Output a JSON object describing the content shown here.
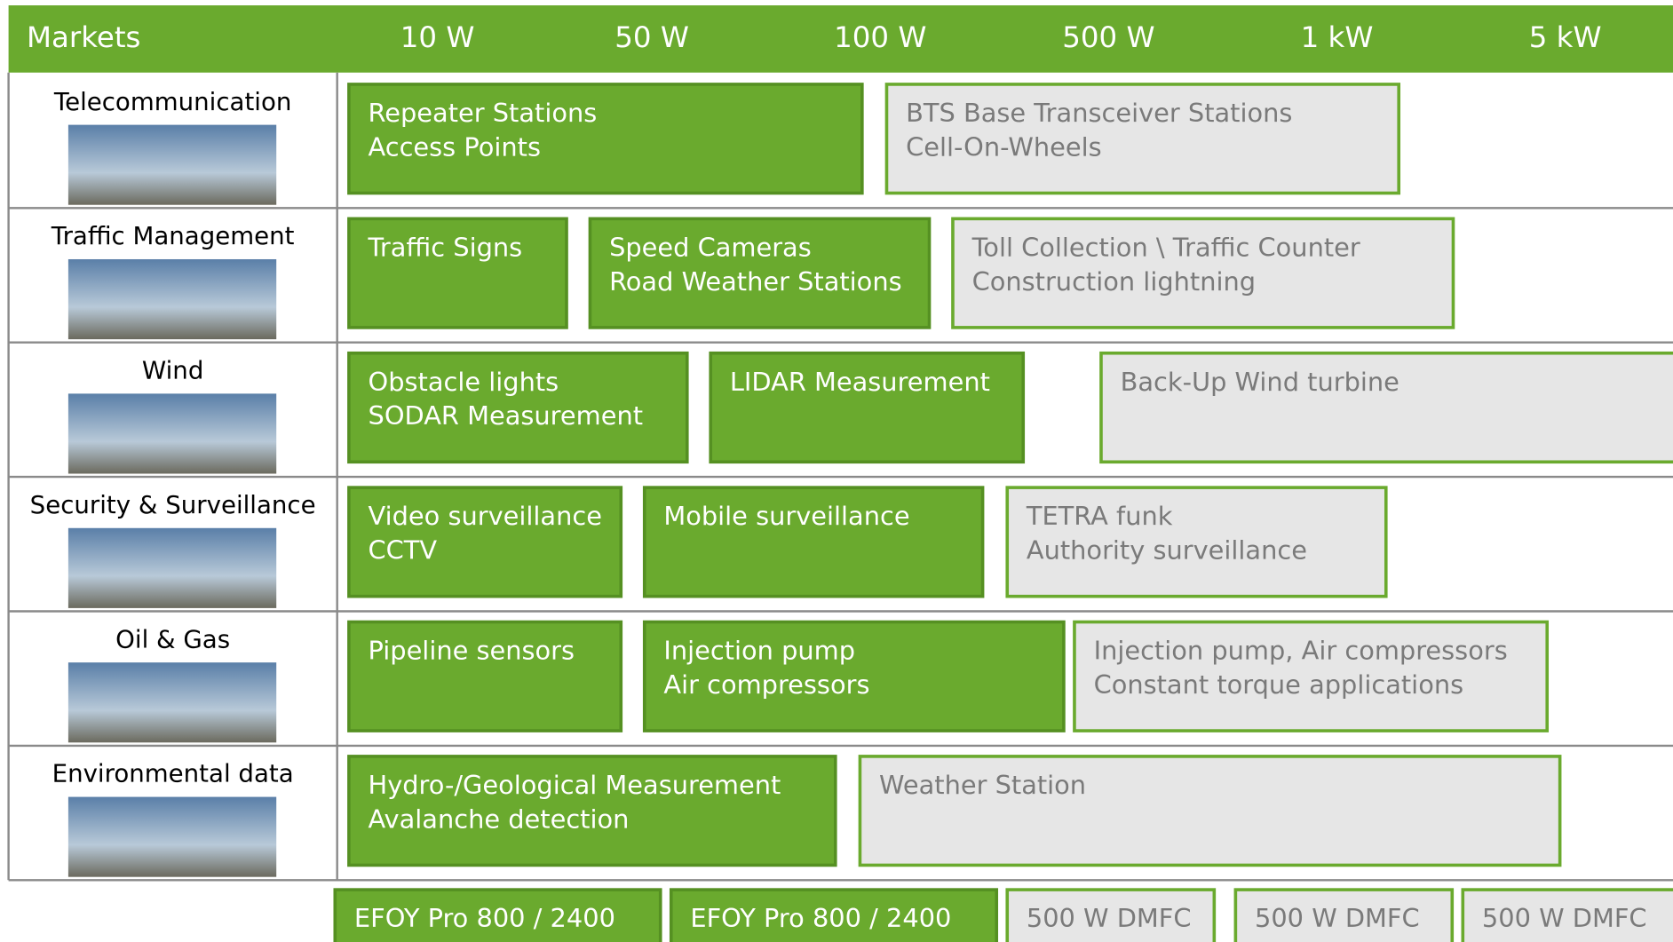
{
  "header": {
    "title": "Markets",
    "power_levels": [
      "10 W",
      "50 W",
      "100 W",
      "500 W",
      "1 kW",
      "5 kW"
    ]
  },
  "markets": [
    {
      "name": "Telecommunication",
      "applications": [
        {
          "lines": [
            "Repeater Stations",
            "Access Points"
          ],
          "style": "green"
        },
        {
          "lines": [
            "BTS Base Transceiver Stations",
            "Cell-On-Wheels"
          ],
          "style": "gray"
        }
      ]
    },
    {
      "name": "Traffic Management",
      "applications": [
        {
          "lines": [
            "Traffic Signs"
          ],
          "style": "green"
        },
        {
          "lines": [
            "Speed Cameras",
            "Road Weather Stations"
          ],
          "style": "green"
        },
        {
          "lines": [
            "Toll Collection \\ Traffic Counter",
            "Construction lightning"
          ],
          "style": "gray"
        }
      ]
    },
    {
      "name": "Wind",
      "applications": [
        {
          "lines": [
            "Obstacle lights",
            "SODAR Measurement"
          ],
          "style": "green"
        },
        {
          "lines": [
            "LIDAR Measurement"
          ],
          "style": "green"
        },
        {
          "lines": [
            "Back-Up Wind turbine"
          ],
          "style": "gray"
        }
      ]
    },
    {
      "name": "Security & Surveillance",
      "applications": [
        {
          "lines": [
            "Video surveillance",
            "CCTV"
          ],
          "style": "green"
        },
        {
          "lines": [
            "Mobile surveillance"
          ],
          "style": "green"
        },
        {
          "lines": [
            "TETRA funk",
            "Authority surveillance"
          ],
          "style": "gray"
        }
      ]
    },
    {
      "name": "Oil & Gas",
      "applications": [
        {
          "lines": [
            "Pipeline sensors"
          ],
          "style": "green"
        },
        {
          "lines": [
            "Injection pump",
            "Air compressors"
          ],
          "style": "green"
        },
        {
          "lines": [
            "Injection pump, Air compressors",
            "Constant torque applications"
          ],
          "style": "gray"
        }
      ]
    },
    {
      "name": "Environmental data",
      "applications": [
        {
          "lines": [
            "Hydro-/Geological Measurement",
            "Avalanche detection"
          ],
          "style": "green"
        },
        {
          "lines": [
            "Weather Station"
          ],
          "style": "gray"
        }
      ]
    }
  ],
  "products": [
    {
      "label": "EFOY Pro 800 / 2400",
      "style": "green"
    },
    {
      "label": "EFOY Pro 800 / 2400",
      "style": "green"
    },
    {
      "label": "500 W DMFC",
      "style": "gray"
    },
    {
      "label": "500 W DMFC",
      "style": "gray"
    },
    {
      "label": "500 W DMFC",
      "style": "gray"
    }
  ]
}
